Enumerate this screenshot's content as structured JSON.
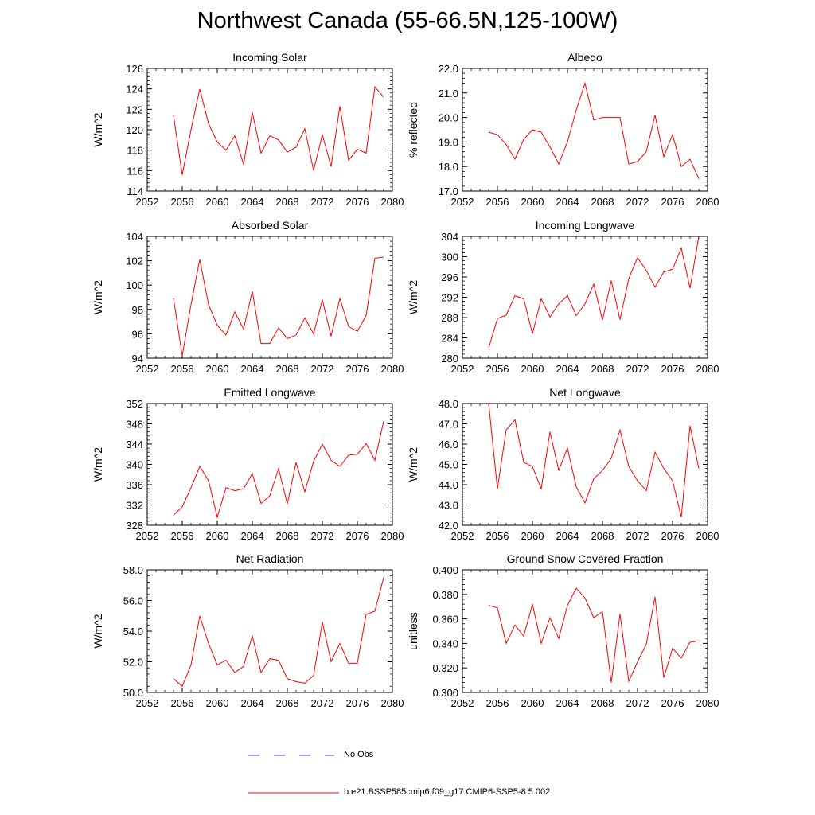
{
  "title": "Northwest Canada (55-66.5N,125-100W)",
  "legend": [
    {
      "label": "No Obs",
      "color": "#4040ff",
      "style": "dashed"
    },
    {
      "label": "b.e21.BSSP585cmip6.f09_g17.CMIP6-SSP5-8.5.002",
      "color": "#ff0000",
      "style": "solid"
    }
  ],
  "colors": {
    "series": "#ff0000",
    "axis": "#000000"
  },
  "chart_data": [
    {
      "type": "line",
      "title": "Incoming Solar",
      "ylabel": "W/m^2",
      "xlim": [
        2052,
        2080
      ],
      "xticks": [
        "2052",
        "2056",
        "2060",
        "2064",
        "2068",
        "2072",
        "2076",
        "2080"
      ],
      "ylim": [
        114,
        126
      ],
      "yticks": [
        "114",
        "116",
        "118",
        "120",
        "122",
        "124",
        "126"
      ],
      "x": [
        2055,
        2056,
        2057,
        2058,
        2059,
        2060,
        2061,
        2062,
        2063,
        2064,
        2065,
        2066,
        2067,
        2068,
        2069,
        2070,
        2071,
        2072,
        2073,
        2074,
        2075,
        2076,
        2077,
        2078,
        2079
      ],
      "series": [
        {
          "values": [
            121.4,
            115.6,
            120.0,
            124.0,
            120.6,
            118.8,
            118.0,
            119.4,
            116.6,
            121.7,
            117.7,
            119.4,
            119.0,
            117.8,
            118.3,
            120.1,
            116.0,
            119.5,
            116.4,
            122.3,
            117.0,
            118.1,
            117.7,
            124.2,
            123.2
          ]
        }
      ]
    },
    {
      "type": "line",
      "title": "Albedo",
      "ylabel": "% reflected",
      "xlim": [
        2052,
        2080
      ],
      "xticks": [
        "2052",
        "2056",
        "2060",
        "2064",
        "2068",
        "2072",
        "2076",
        "2080"
      ],
      "ylim": [
        17.0,
        22.0
      ],
      "yticks": [
        "17.0",
        "18.0",
        "19.0",
        "20.0",
        "21.0",
        "22.0"
      ],
      "x": [
        2055,
        2056,
        2057,
        2058,
        2059,
        2060,
        2061,
        2062,
        2063,
        2064,
        2065,
        2066,
        2067,
        2068,
        2069,
        2070,
        2071,
        2072,
        2073,
        2074,
        2075,
        2076,
        2077,
        2078,
        2079
      ],
      "series": [
        {
          "values": [
            19.4,
            19.3,
            18.9,
            18.3,
            19.1,
            19.5,
            19.4,
            18.8,
            18.1,
            19.0,
            20.3,
            21.4,
            19.9,
            20.0,
            20.0,
            20.0,
            18.1,
            18.2,
            18.6,
            20.1,
            18.4,
            19.3,
            18.0,
            18.3,
            17.5
          ]
        }
      ]
    },
    {
      "type": "line",
      "title": "Absorbed Solar",
      "ylabel": "W/m^2",
      "xlim": [
        2052,
        2080
      ],
      "xticks": [
        "2052",
        "2056",
        "2060",
        "2064",
        "2068",
        "2072",
        "2076",
        "2080"
      ],
      "ylim": [
        94,
        104
      ],
      "yticks": [
        "94",
        "96",
        "98",
        "100",
        "102",
        "104"
      ],
      "x": [
        2055,
        2056,
        2057,
        2058,
        2059,
        2060,
        2061,
        2062,
        2063,
        2064,
        2065,
        2066,
        2067,
        2068,
        2069,
        2070,
        2071,
        2072,
        2073,
        2074,
        2075,
        2076,
        2077,
        2078,
        2079
      ],
      "series": [
        {
          "values": [
            98.9,
            94.2,
            98.4,
            102.1,
            98.4,
            96.7,
            95.9,
            97.8,
            96.4,
            99.5,
            95.2,
            95.2,
            96.5,
            95.6,
            95.9,
            97.3,
            96.0,
            98.8,
            95.8,
            98.9,
            96.6,
            96.2,
            97.5,
            102.2,
            102.3
          ]
        }
      ]
    },
    {
      "type": "line",
      "title": "Incoming Longwave",
      "ylabel": "W/m^2",
      "xlim": [
        2052,
        2080
      ],
      "xticks": [
        "2052",
        "2056",
        "2060",
        "2064",
        "2068",
        "2072",
        "2076",
        "2080"
      ],
      "ylim": [
        280,
        304
      ],
      "yticks": [
        "280",
        "284",
        "288",
        "292",
        "296",
        "300",
        "304"
      ],
      "x": [
        2055,
        2056,
        2057,
        2058,
        2059,
        2060,
        2061,
        2062,
        2063,
        2064,
        2065,
        2066,
        2067,
        2068,
        2069,
        2070,
        2071,
        2072,
        2073,
        2074,
        2075,
        2076,
        2077,
        2078,
        2079
      ],
      "series": [
        {
          "values": [
            282.0,
            287.8,
            288.5,
            292.3,
            291.7,
            284.8,
            291.7,
            288.1,
            290.7,
            292.3,
            288.4,
            290.7,
            294.6,
            287.5,
            295.3,
            287.6,
            295.7,
            299.8,
            297.3,
            294.0,
            297.0,
            297.5,
            301.7,
            293.8,
            304.0
          ]
        }
      ]
    },
    {
      "type": "line",
      "title": "Emitted Longwave",
      "ylabel": "W/m^2",
      "xlim": [
        2052,
        2080
      ],
      "xticks": [
        "2052",
        "2056",
        "2060",
        "2064",
        "2068",
        "2072",
        "2076",
        "2080"
      ],
      "ylim": [
        328,
        352
      ],
      "yticks": [
        "328",
        "332",
        "336",
        "340",
        "344",
        "348",
        "352"
      ],
      "x": [
        2055,
        2056,
        2057,
        2058,
        2059,
        2060,
        2061,
        2062,
        2063,
        2064,
        2065,
        2066,
        2067,
        2068,
        2069,
        2070,
        2071,
        2072,
        2073,
        2074,
        2075,
        2076,
        2077,
        2078,
        2079
      ],
      "series": [
        {
          "values": [
            330.0,
            331.6,
            335.4,
            339.6,
            336.8,
            329.6,
            335.4,
            334.8,
            335.2,
            338.2,
            332.3,
            333.8,
            339.2,
            332.2,
            340.4,
            334.6,
            340.6,
            344.0,
            340.8,
            339.6,
            341.8,
            342.0,
            344.1,
            340.8,
            348.5
          ]
        }
      ]
    },
    {
      "type": "line",
      "title": "Net Longwave",
      "ylabel": "W/m^2",
      "xlim": [
        2052,
        2080
      ],
      "xticks": [
        "2052",
        "2056",
        "2060",
        "2064",
        "2068",
        "2072",
        "2076",
        "2080"
      ],
      "ylim": [
        42.0,
        48.0
      ],
      "yticks": [
        "42.0",
        "43.0",
        "44.0",
        "45.0",
        "46.0",
        "47.0",
        "48.0"
      ],
      "x": [
        2055,
        2056,
        2057,
        2058,
        2059,
        2060,
        2061,
        2062,
        2063,
        2064,
        2065,
        2066,
        2067,
        2068,
        2069,
        2070,
        2071,
        2072,
        2073,
        2074,
        2075,
        2076,
        2077,
        2078,
        2079
      ],
      "series": [
        {
          "values": [
            48.0,
            43.8,
            46.7,
            47.2,
            45.1,
            44.9,
            43.8,
            46.6,
            44.7,
            45.8,
            43.9,
            43.1,
            44.3,
            44.7,
            45.3,
            46.7,
            44.9,
            44.2,
            43.7,
            45.6,
            44.8,
            44.2,
            42.4,
            46.9,
            44.8
          ]
        }
      ]
    },
    {
      "type": "line",
      "title": "Net Radiation",
      "ylabel": "W/m^2",
      "xlim": [
        2052,
        2080
      ],
      "xticks": [
        "2052",
        "2056",
        "2060",
        "2064",
        "2068",
        "2072",
        "2076",
        "2080"
      ],
      "ylim": [
        50.0,
        58.0
      ],
      "yticks": [
        "50.0",
        "52.0",
        "54.0",
        "56.0",
        "58.0"
      ],
      "x": [
        2055,
        2056,
        2057,
        2058,
        2059,
        2060,
        2061,
        2062,
        2063,
        2064,
        2065,
        2066,
        2067,
        2068,
        2069,
        2070,
        2071,
        2072,
        2073,
        2074,
        2075,
        2076,
        2077,
        2078,
        2079
      ],
      "series": [
        {
          "values": [
            50.9,
            50.4,
            51.8,
            55.0,
            53.2,
            51.8,
            52.1,
            51.3,
            51.7,
            53.7,
            51.3,
            52.2,
            52.1,
            50.9,
            50.7,
            50.6,
            51.1,
            54.6,
            52.0,
            53.2,
            51.9,
            51.9,
            55.1,
            55.3,
            57.5
          ]
        }
      ]
    },
    {
      "type": "line",
      "title": "Ground Snow Covered Fraction",
      "ylabel": "unitless",
      "xlim": [
        2052,
        2080
      ],
      "xticks": [
        "2052",
        "2056",
        "2060",
        "2064",
        "2068",
        "2072",
        "2076",
        "2080"
      ],
      "ylim": [
        0.3,
        0.4
      ],
      "yticks": [
        "0.300",
        "0.320",
        "0.340",
        "0.360",
        "0.380",
        "0.400"
      ],
      "x": [
        2055,
        2056,
        2057,
        2058,
        2059,
        2060,
        2061,
        2062,
        2063,
        2064,
        2065,
        2066,
        2067,
        2068,
        2069,
        2070,
        2071,
        2072,
        2073,
        2074,
        2075,
        2076,
        2077,
        2078,
        2079
      ],
      "series": [
        {
          "values": [
            0.371,
            0.369,
            0.34,
            0.355,
            0.346,
            0.372,
            0.34,
            0.361,
            0.344,
            0.371,
            0.385,
            0.377,
            0.361,
            0.366,
            0.308,
            0.364,
            0.309,
            0.325,
            0.339,
            0.378,
            0.312,
            0.336,
            0.328,
            0.341,
            0.342
          ]
        }
      ]
    }
  ]
}
